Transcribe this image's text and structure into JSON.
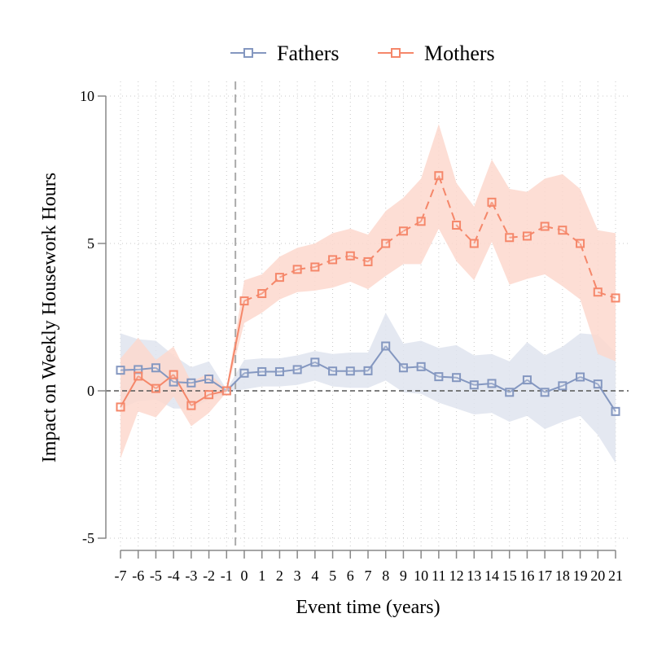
{
  "chart_data": {
    "type": "line",
    "xlabel": "Event time (years)",
    "ylabel": "Impact on Weekly Housework Hours",
    "x": [
      -7,
      -6,
      -5,
      -4,
      -3,
      -2,
      -1,
      0,
      1,
      2,
      3,
      4,
      5,
      6,
      7,
      8,
      9,
      10,
      11,
      12,
      13,
      14,
      15,
      16,
      17,
      18,
      19,
      20,
      21
    ],
    "x_tick_labels": [
      "-7",
      "-6",
      "-5",
      "-4",
      "-3",
      "-2",
      "-1",
      "0",
      "1",
      "2",
      "3",
      "4",
      "5",
      "6",
      "7",
      "8",
      "9",
      "10",
      "11",
      "12",
      "13",
      "14",
      "15",
      "16",
      "17",
      "18",
      "19",
      "20",
      "21"
    ],
    "y_ticks": [
      -5,
      0,
      5,
      10
    ],
    "y_tick_labels": [
      "-5",
      "0",
      "5",
      "10"
    ],
    "xlim": [
      -7,
      21
    ],
    "ylim": [
      -5,
      10
    ],
    "grid": true,
    "legend_position": "top",
    "reference_lines": {
      "y": 0,
      "x": -0.5
    },
    "series": [
      {
        "name": "Fathers",
        "color": "#8497c0",
        "band_color": "#dfe4ef",
        "line_style": "solid",
        "marker": "hollow-square",
        "values": [
          0.7,
          0.72,
          0.78,
          0.3,
          0.27,
          0.4,
          0.0,
          0.6,
          0.65,
          0.65,
          0.72,
          0.97,
          0.67,
          0.67,
          0.68,
          1.52,
          0.78,
          0.82,
          0.48,
          0.45,
          0.2,
          0.25,
          -0.05,
          0.37,
          -0.05,
          0.17,
          0.47,
          0.23,
          -0.7
        ],
        "ci_low": [
          -0.6,
          -0.35,
          -0.3,
          -0.6,
          -0.6,
          -0.3,
          -0.05,
          0.05,
          0.15,
          0.15,
          0.2,
          0.35,
          0.15,
          0.1,
          0.1,
          0.35,
          -0.05,
          -0.1,
          -0.4,
          -0.6,
          -0.8,
          -0.75,
          -1.05,
          -0.85,
          -1.3,
          -1.05,
          -0.85,
          -1.5,
          -2.45
        ],
        "ci_high": [
          1.95,
          1.75,
          1.7,
          1.2,
          0.8,
          1.0,
          0.05,
          1.05,
          1.1,
          1.1,
          1.2,
          1.35,
          1.25,
          1.3,
          1.3,
          2.65,
          1.6,
          1.7,
          1.45,
          1.55,
          1.2,
          1.25,
          1.0,
          1.65,
          1.2,
          1.5,
          1.95,
          1.9,
          1.3
        ]
      },
      {
        "name": "Mothers",
        "color": "#f5876a",
        "band_color": "#fdd8ce",
        "line_style": "dashed",
        "marker": "hollow-square",
        "values": [
          -0.55,
          0.5,
          0.08,
          0.55,
          -0.5,
          -0.13,
          0.0,
          3.05,
          3.3,
          3.85,
          4.12,
          4.2,
          4.45,
          4.58,
          4.38,
          5.0,
          5.42,
          5.75,
          7.3,
          5.62,
          5.0,
          6.4,
          5.2,
          5.25,
          5.58,
          5.45,
          5.0,
          3.35,
          3.15
        ],
        "ci_low": [
          -2.3,
          -0.7,
          -0.9,
          -0.2,
          -1.2,
          -0.75,
          -0.05,
          2.3,
          2.65,
          3.1,
          3.35,
          3.4,
          3.5,
          3.7,
          3.45,
          3.9,
          4.3,
          4.3,
          5.5,
          4.4,
          3.75,
          5.05,
          3.6,
          3.8,
          3.95,
          3.55,
          3.1,
          1.25,
          1.0
        ],
        "ci_high": [
          1.1,
          1.8,
          1.05,
          1.5,
          0.3,
          0.6,
          0.05,
          3.75,
          3.95,
          4.55,
          4.85,
          5.0,
          5.35,
          5.5,
          5.3,
          6.1,
          6.55,
          7.2,
          9.05,
          7.05,
          6.25,
          7.85,
          6.85,
          6.75,
          7.2,
          7.35,
          6.85,
          5.45,
          5.35
        ]
      }
    ]
  }
}
